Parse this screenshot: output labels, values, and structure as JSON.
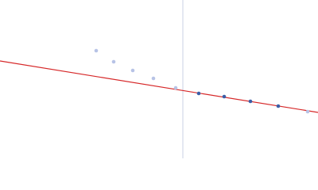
{
  "chart_data": {
    "type": "scatter",
    "xlim": [
      0,
      400
    ],
    "ylim": [
      0,
      200
    ],
    "series": [
      {
        "color": "#b7c3e6",
        "x": [
          121,
          143,
          167,
          193,
          221,
          387
        ],
        "values": [
          136,
          122,
          111,
          101,
          89,
          59
        ]
      },
      {
        "color": "#3b5ea6",
        "x": [
          250,
          282,
          315,
          350
        ],
        "values": [
          82,
          78,
          72,
          66
        ]
      }
    ],
    "fit": {
      "color": "#d62728",
      "x": [
        0,
        400
      ],
      "values": [
        123,
        58
      ]
    },
    "vline": {
      "x": 230,
      "color": "#c8d0e6"
    }
  }
}
